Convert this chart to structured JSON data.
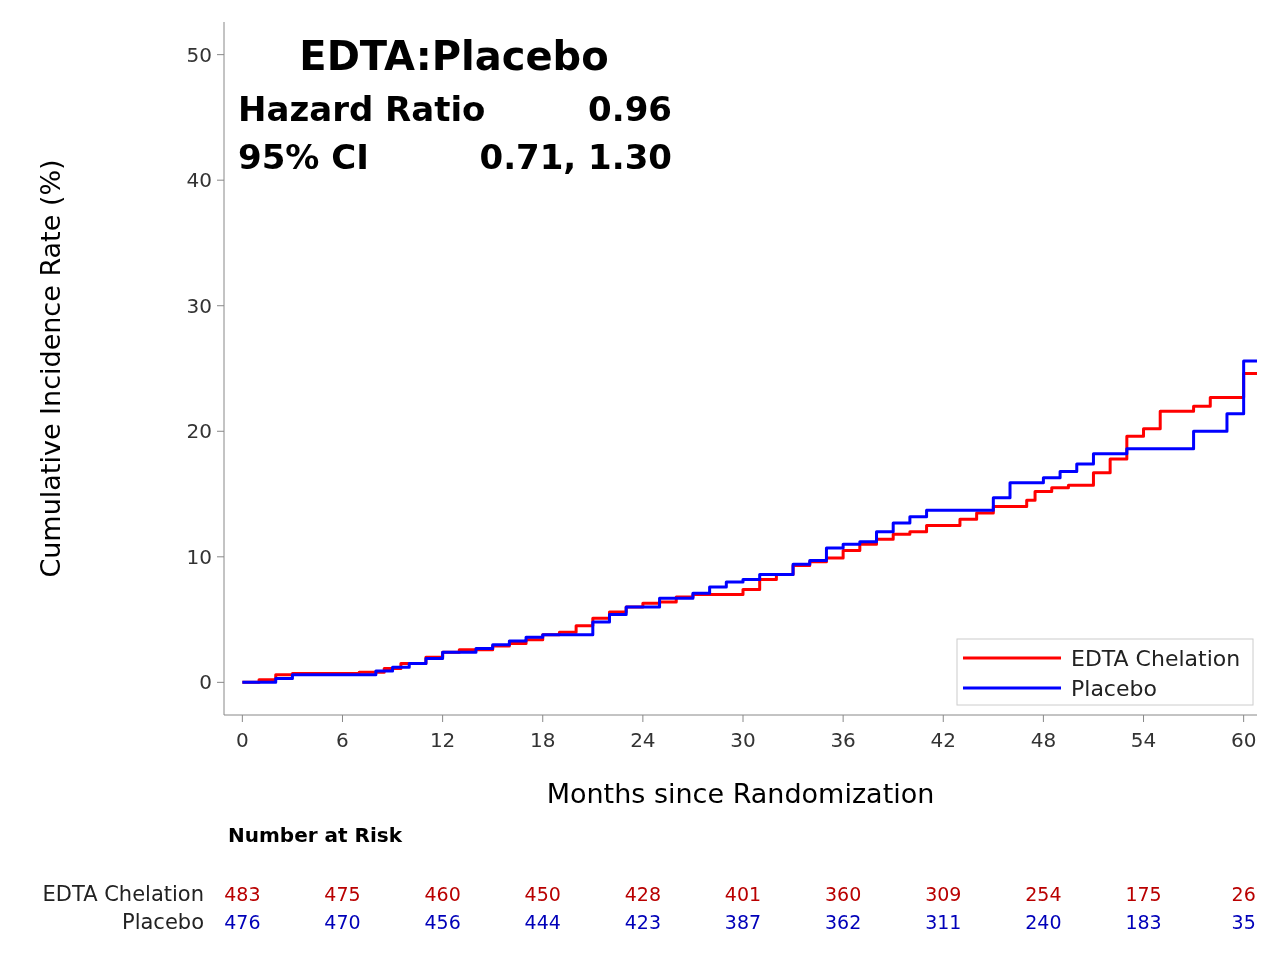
{
  "chart_data": {
    "type": "step",
    "title": "EDTA:Placebo",
    "xlabel": "Months since Randomization",
    "ylabel": "Cumulative Incidence Rate (%)",
    "xlim": [
      -1.1,
      60.8
    ],
    "xticks": [
      0,
      6,
      12,
      18,
      24,
      30,
      36,
      42,
      48,
      54,
      60
    ],
    "ylim": [
      -2.6,
      52.6
    ],
    "yticks": [
      0,
      10,
      20,
      30,
      40,
      50
    ],
    "grid": false,
    "legend": "bottom right",
    "series": [
      {
        "name": "EDTA Chelation",
        "color": "#ff0000",
        "x": [
          0,
          1,
          2,
          3,
          7,
          8.5,
          9.5,
          11,
          12,
          13,
          15,
          16,
          17,
          18,
          19,
          20,
          21,
          22,
          23,
          24,
          25,
          26,
          27,
          30,
          31,
          32,
          33,
          34,
          35,
          36,
          37,
          38,
          39,
          40,
          41,
          43,
          44,
          45,
          47,
          47.5,
          48.5,
          49.5,
          51,
          52,
          53,
          54,
          55,
          57,
          58,
          60,
          60.8
        ],
        "values": [
          0,
          0.2,
          0.6,
          0.7,
          0.8,
          1.1,
          1.5,
          2.0,
          2.4,
          2.6,
          2.9,
          3.1,
          3.4,
          3.8,
          4.0,
          4.5,
          5.1,
          5.6,
          6.0,
          6.3,
          6.4,
          6.8,
          7.0,
          7.4,
          8.2,
          8.6,
          9.3,
          9.6,
          9.9,
          10.5,
          11.0,
          11.4,
          11.8,
          12.0,
          12.5,
          13.0,
          13.5,
          14.0,
          14.5,
          15.2,
          15.5,
          15.7,
          16.7,
          17.8,
          19.6,
          20.2,
          21.6,
          22.0,
          22.7,
          24.6,
          24.6
        ]
      },
      {
        "name": "Placebo",
        "color": "#0000ff",
        "x": [
          0,
          2,
          3,
          8,
          9,
          10,
          11,
          12,
          14,
          15,
          16,
          17,
          18,
          21,
          22,
          23,
          25,
          27,
          28,
          29,
          30,
          31,
          33,
          34,
          35,
          36,
          37,
          38,
          39,
          40,
          41,
          45,
          46,
          48,
          49,
          50,
          51,
          53,
          57,
          59,
          60,
          60.8
        ],
        "values": [
          0,
          0.3,
          0.6,
          0.9,
          1.2,
          1.5,
          1.9,
          2.4,
          2.7,
          3.0,
          3.3,
          3.6,
          3.8,
          4.8,
          5.4,
          6.0,
          6.7,
          7.1,
          7.6,
          8.0,
          8.2,
          8.6,
          9.4,
          9.7,
          10.7,
          11.0,
          11.2,
          12.0,
          12.7,
          13.2,
          13.7,
          14.7,
          15.9,
          16.3,
          16.8,
          17.4,
          18.2,
          18.6,
          20.0,
          21.4,
          25.6,
          25.6
        ]
      }
    ],
    "annotations": [
      "Hazard Ratio",
      "0.96",
      "95% CI",
      "0.71, 1.30",
      "Number at Risk",
      "EDTA Chelation",
      "Placebo",
      "483",
      "475",
      "460",
      "450",
      "428",
      "401",
      "360",
      "309",
      "254",
      "175",
      "26",
      "476",
      "470",
      "456",
      "444",
      "423",
      "387",
      "362",
      "311",
      "240",
      "183",
      "35"
    ]
  }
}
